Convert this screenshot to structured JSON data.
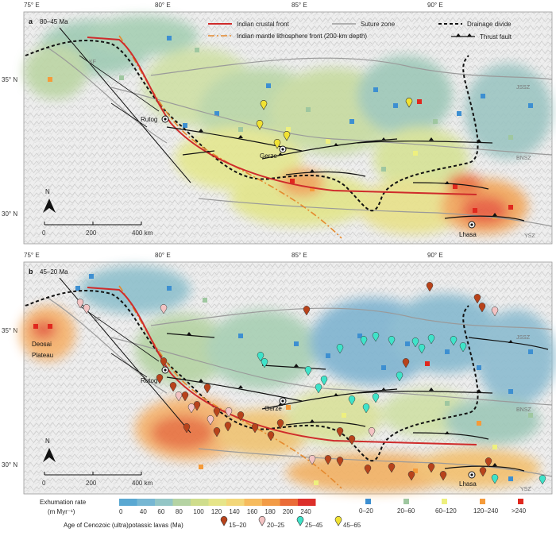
{
  "longitude_ticks": [
    "75° E",
    "80° E",
    "85° E",
    "90° E"
  ],
  "latitude_ticks": [
    "35° N",
    "30° N"
  ],
  "panels": [
    {
      "tag": "a",
      "age": "80–45 Ma"
    },
    {
      "tag": "b",
      "age": "45–20 Ma"
    }
  ],
  "legend_lines": {
    "crustal_front": "Indian crustal front",
    "mantle_front": "Indian mantle lithosphere front (200-km depth)",
    "suture": "Suture zone",
    "divide": "Drainage divide",
    "thrust": "Thrust fault"
  },
  "place_labels": {
    "rutog": "Rutog",
    "gerze": "Gerze",
    "lhasa": "Lhasa",
    "kf": "KF",
    "jssz": "JSSZ",
    "bnsz": "BNSZ",
    "ysz": "YSZ",
    "deosai": "Deosai",
    "plateau": "Plateau"
  },
  "north_label": "N",
  "scale_bar": {
    "labels": [
      "0",
      "200",
      "400 km"
    ]
  },
  "colorbar": {
    "title": "Exhumation rate",
    "unit": "(m Myr⁻¹)",
    "ticks": [
      "0",
      "40",
      "60",
      "80",
      "100",
      "120",
      "140",
      "160",
      "180",
      "200",
      "240"
    ],
    "colors": [
      "#5aa8d2",
      "#77b7d3",
      "#94c6c6",
      "#b5d3a3",
      "#cfdd8d",
      "#e6e58a",
      "#f3d77a",
      "#f6bb5e",
      "#f29b46",
      "#ea6b37",
      "#dc2f2a"
    ]
  },
  "point_classes": [
    {
      "label": "0–20",
      "color": "#3d8fd1"
    },
    {
      "label": "20–60",
      "color": "#9fc7a0"
    },
    {
      "label": "60–120",
      "color": "#eef07e"
    },
    {
      "label": "120–240",
      "color": "#f59b3a"
    },
    {
      "label": ">240",
      "color": "#e0281e"
    }
  ],
  "lava_legend": {
    "title": "Age of Cenozoic (ultra)potassic lavas (Ma)",
    "classes": [
      {
        "label": "15–20",
        "color": "#b8431b"
      },
      {
        "label": "20–25",
        "color": "#f3c3c3"
      },
      {
        "label": "25–45",
        "color": "#3fe3c9"
      },
      {
        "label": "45–65",
        "color": "#f1e233"
      }
    ]
  }
}
